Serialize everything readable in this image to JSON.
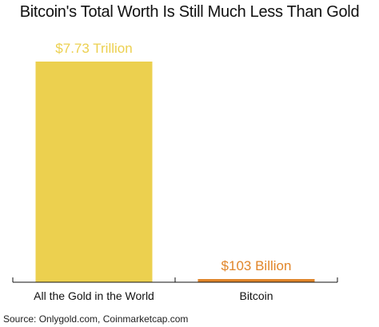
{
  "chart_data": {
    "type": "bar",
    "title": "Bitcoin's Total Worth Is Still Much Less Than Gold",
    "categories": [
      "All the Gold in the World",
      "Bitcoin"
    ],
    "values": [
      7730,
      103
    ],
    "unit": "billion USD",
    "data_labels": [
      "$7.73 Trillion",
      "$103 Billion"
    ],
    "colors": [
      "#ecd04f",
      "#e1862a"
    ],
    "label_colors": [
      "#ecd04f",
      "#e1862a"
    ],
    "ylim": [
      0,
      7730
    ],
    "grid": false,
    "legend": "none",
    "xlabel": "",
    "ylabel": "",
    "source": "Source: Onlygold.com, Coinmarketcap.com"
  }
}
